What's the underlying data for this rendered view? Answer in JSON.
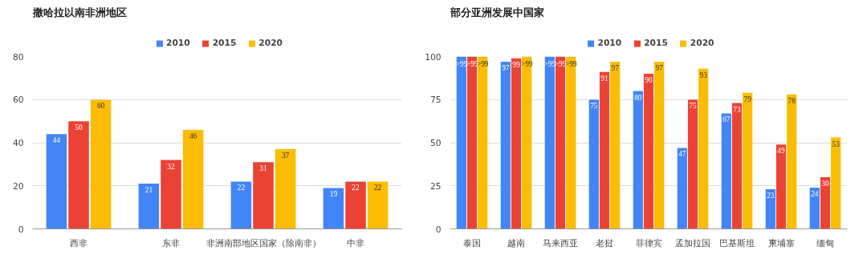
{
  "chart_data": [
    {
      "type": "bar",
      "title": "撒哈拉以南非洲地区",
      "categories": [
        "西非",
        "东非",
        "非洲南部地区国家（除南非）",
        "中非"
      ],
      "ylim": [
        0,
        80
      ],
      "yticks": [
        0,
        20,
        40,
        60,
        80
      ],
      "grid": "y",
      "legend": "top",
      "data_labels": true,
      "series": [
        {
          "name": "2010",
          "color": "#4285f4",
          "values": [
            44,
            21,
            22,
            19
          ]
        },
        {
          "name": "2015",
          "color": "#ea4335",
          "values": [
            50,
            32,
            31,
            22
          ]
        },
        {
          "name": "2020",
          "color": "#fbbc04",
          "values": [
            60,
            46,
            37,
            22
          ]
        }
      ]
    },
    {
      "type": "bar",
      "title": "部分亚洲发展中国家",
      "categories": [
        "泰国",
        "越南",
        "马来西亚",
        "老挝",
        "菲律宾",
        "孟加拉国",
        "巴基斯坦",
        "柬埔寨",
        "缅甸"
      ],
      "ylim": [
        0,
        100
      ],
      "yticks": [
        0,
        25,
        50,
        75,
        100
      ],
      "grid": "y",
      "legend": "top",
      "series": [
        {
          "name": "2010",
          "color": "#4285f4",
          "values": [
            100,
            97,
            100,
            75,
            80,
            47,
            67,
            23,
            24
          ],
          "value_labels": [
            ">99",
            "97",
            ">99",
            "75",
            "80",
            "47",
            "67",
            "23",
            "24"
          ]
        },
        {
          "name": "2015",
          "color": "#ea4335",
          "values": [
            100,
            99,
            100,
            91,
            90,
            75,
            73,
            49,
            30
          ],
          "value_labels": [
            ">99",
            "99",
            ">99",
            "91",
            "90",
            "75",
            "73",
            "49",
            "30"
          ]
        },
        {
          "name": "2020",
          "color": "#fbbc04",
          "values": [
            100,
            100,
            100,
            97,
            97,
            93,
            79,
            78,
            53
          ],
          "value_labels": [
            ">99",
            ">99",
            ">99",
            "97",
            "97",
            "93",
            "79",
            "78",
            "53"
          ]
        }
      ]
    }
  ]
}
